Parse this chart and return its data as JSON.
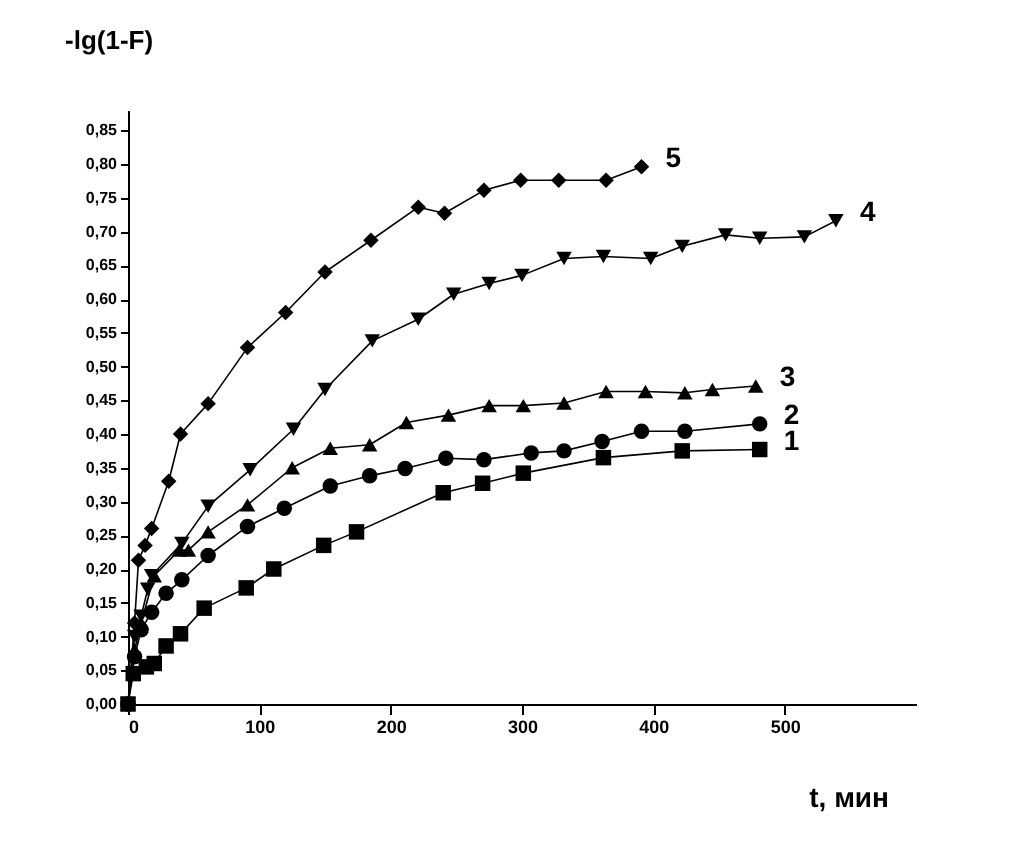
{
  "chart_data": {
    "type": "line",
    "xlabel": "t, мин",
    "ylabel": "-lg(1-F)",
    "xlim": [
      0,
      600
    ],
    "ylim": [
      0,
      0.88
    ],
    "xticks": [
      0,
      100,
      200,
      300,
      400,
      500
    ],
    "yticks": [
      {
        "value": 0,
        "label": "0,00"
      },
      {
        "value": 0.05,
        "label": "0,05"
      },
      {
        "value": 0.1,
        "label": "0,10"
      },
      {
        "value": 0.15,
        "label": "0,15"
      },
      {
        "value": 0.2,
        "label": "0,20"
      },
      {
        "value": 0.25,
        "label": "0,25"
      },
      {
        "value": 0.3,
        "label": "0,30"
      },
      {
        "value": 0.35,
        "label": "0,35"
      },
      {
        "value": 0.4,
        "label": "0,40"
      },
      {
        "value": 0.45,
        "label": "0,45"
      },
      {
        "value": 0.5,
        "label": "0,50"
      },
      {
        "value": 0.55,
        "label": "0,55"
      },
      {
        "value": 0.6,
        "label": "0,60"
      },
      {
        "value": 0.65,
        "label": "0,65"
      },
      {
        "value": 0.7,
        "label": "0,70"
      },
      {
        "value": 0.75,
        "label": "0,75"
      },
      {
        "value": 0.8,
        "label": "0,80"
      },
      {
        "value": 0.85,
        "label": "0,85"
      }
    ],
    "grid": false,
    "line_style": "solid",
    "series": [
      {
        "name": "1",
        "color": "#000000",
        "marker": "square",
        "x": [
          0,
          4,
          14,
          20,
          29,
          40,
          58,
          90,
          111,
          149,
          174,
          240,
          270,
          301,
          362,
          422,
          481
        ],
        "values": [
          0,
          0.045,
          0.055,
          0.06,
          0.086,
          0.104,
          0.142,
          0.172,
          0.2,
          0.235,
          0.255,
          0.313,
          0.327,
          0.342,
          0.365,
          0.375,
          0.377
        ]
      },
      {
        "name": "2",
        "color": "#000000",
        "marker": "circle",
        "x": [
          0,
          5,
          10,
          18,
          29,
          41,
          61,
          91,
          119,
          154,
          184,
          211,
          242,
          271,
          307,
          332,
          361,
          391,
          424,
          481
        ],
        "values": [
          0,
          0.07,
          0.11,
          0.136,
          0.164,
          0.184,
          0.22,
          0.263,
          0.29,
          0.323,
          0.338,
          0.349,
          0.364,
          0.362,
          0.372,
          0.375,
          0.389,
          0.404,
          0.404,
          0.415
        ]
      },
      {
        "name": "3",
        "color": "#000000",
        "marker": "triangle",
        "x": [
          0,
          5,
          10,
          20,
          39,
          46,
          61,
          91,
          125,
          154,
          184,
          212,
          244,
          275,
          301,
          332,
          364,
          394,
          424,
          445,
          478
        ],
        "values": [
          0,
          0.08,
          0.12,
          0.19,
          0.228,
          0.228,
          0.255,
          0.295,
          0.35,
          0.379,
          0.384,
          0.417,
          0.428,
          0.442,
          0.442,
          0.446,
          0.463,
          0.463,
          0.461,
          0.466,
          0.471
        ]
      },
      {
        "name": "4",
        "color": "#000000",
        "marker": "triangle-down",
        "x": [
          0,
          5,
          10,
          15,
          18,
          41,
          61,
          93,
          126,
          150,
          186,
          221,
          248,
          275,
          300,
          332,
          362,
          398,
          422,
          455,
          481,
          515,
          539
        ],
        "values": [
          0,
          0.1,
          0.13,
          0.17,
          0.19,
          0.238,
          0.293,
          0.347,
          0.407,
          0.466,
          0.538,
          0.57,
          0.607,
          0.623,
          0.635,
          0.66,
          0.663,
          0.66,
          0.678,
          0.695,
          0.69,
          0.692,
          0.716
        ]
      },
      {
        "name": "5",
        "color": "#000000",
        "marker": "diamond",
        "x": [
          0,
          5,
          8,
          13,
          18,
          31,
          40,
          61,
          91,
          120,
          150,
          185,
          221,
          241,
          271,
          299,
          328,
          364,
          391
        ],
        "values": [
          0,
          0.12,
          0.213,
          0.235,
          0.26,
          0.33,
          0.4,
          0.445,
          0.528,
          0.58,
          0.64,
          0.687,
          0.736,
          0.727,
          0.761,
          0.776,
          0.776,
          0.776,
          0.796
        ]
      }
    ]
  }
}
